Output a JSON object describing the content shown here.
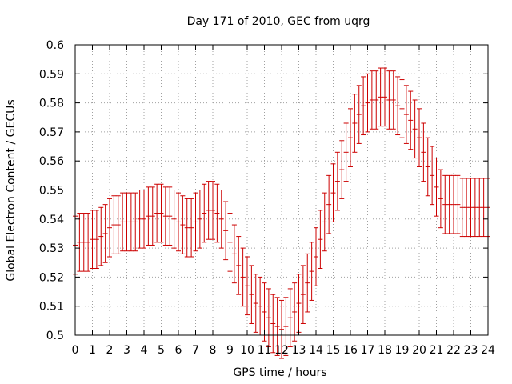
{
  "chart_data": {
    "type": "scatter",
    "title": "Day 171 of 2010, GEC from uqrg",
    "xlabel": "GPS time / hours",
    "ylabel": "Global Electron Content / GECUs",
    "xlim": [
      0,
      24
    ],
    "ylim": [
      0.5,
      0.6
    ],
    "x_ticks": [
      "0",
      "1",
      "2",
      "3",
      "4",
      "5",
      "6",
      "7",
      "8",
      "9",
      "10",
      "11",
      "12",
      "13",
      "14",
      "15",
      "16",
      "17",
      "18",
      "19",
      "20",
      "21",
      "22",
      "23",
      "24"
    ],
    "y_ticks": [
      "0.5",
      "0.51",
      "0.52",
      "0.53",
      "0.54",
      "0.55",
      "0.56",
      "0.57",
      "0.58",
      "0.59",
      "0.6"
    ],
    "grid": true,
    "error": 0.01,
    "series": [
      {
        "color": "#cc0000",
        "x": [
          0.0,
          0.25,
          0.5,
          0.75,
          1.0,
          1.25,
          1.5,
          1.75,
          2.0,
          2.25,
          2.5,
          2.75,
          3.0,
          3.25,
          3.5,
          3.75,
          4.0,
          4.25,
          4.5,
          4.75,
          5.0,
          5.25,
          5.5,
          5.75,
          6.0,
          6.25,
          6.5,
          6.75,
          7.0,
          7.25,
          7.5,
          7.75,
          8.0,
          8.25,
          8.5,
          8.75,
          9.0,
          9.25,
          9.5,
          9.75,
          10.0,
          10.25,
          10.5,
          10.75,
          11.0,
          11.25,
          11.5,
          11.75,
          12.0,
          12.25,
          12.5,
          12.75,
          13.0,
          13.25,
          13.5,
          13.75,
          14.0,
          14.25,
          14.5,
          14.75,
          15.0,
          15.25,
          15.5,
          15.75,
          16.0,
          16.25,
          16.5,
          16.75,
          17.0,
          17.25,
          17.5,
          17.75,
          18.0,
          18.25,
          18.5,
          18.75,
          19.0,
          19.25,
          19.5,
          19.75,
          20.0,
          20.25,
          20.5,
          20.75,
          21.0,
          21.25,
          21.5,
          21.75,
          22.0,
          22.25,
          22.5,
          22.75,
          23.0,
          23.25,
          23.5,
          23.75,
          24.0
        ],
        "y": [
          0.531,
          0.532,
          0.532,
          0.532,
          0.533,
          0.533,
          0.534,
          0.535,
          0.537,
          0.538,
          0.538,
          0.539,
          0.539,
          0.539,
          0.539,
          0.54,
          0.54,
          0.541,
          0.541,
          0.542,
          0.542,
          0.541,
          0.541,
          0.54,
          0.539,
          0.538,
          0.537,
          0.537,
          0.539,
          0.54,
          0.542,
          0.543,
          0.543,
          0.542,
          0.54,
          0.536,
          0.532,
          0.528,
          0.524,
          0.52,
          0.517,
          0.514,
          0.511,
          0.51,
          0.508,
          0.506,
          0.504,
          0.503,
          0.502,
          0.503,
          0.506,
          0.508,
          0.511,
          0.514,
          0.518,
          0.522,
          0.527,
          0.533,
          0.539,
          0.545,
          0.549,
          0.553,
          0.557,
          0.563,
          0.568,
          0.573,
          0.576,
          0.579,
          0.58,
          0.581,
          0.581,
          0.582,
          0.582,
          0.581,
          0.581,
          0.579,
          0.578,
          0.576,
          0.574,
          0.571,
          0.568,
          0.563,
          0.558,
          0.555,
          0.551,
          0.547,
          0.545,
          0.545,
          0.545,
          0.545,
          0.544,
          0.544,
          0.544,
          0.544,
          0.544,
          0.544,
          0.544
        ]
      }
    ]
  }
}
